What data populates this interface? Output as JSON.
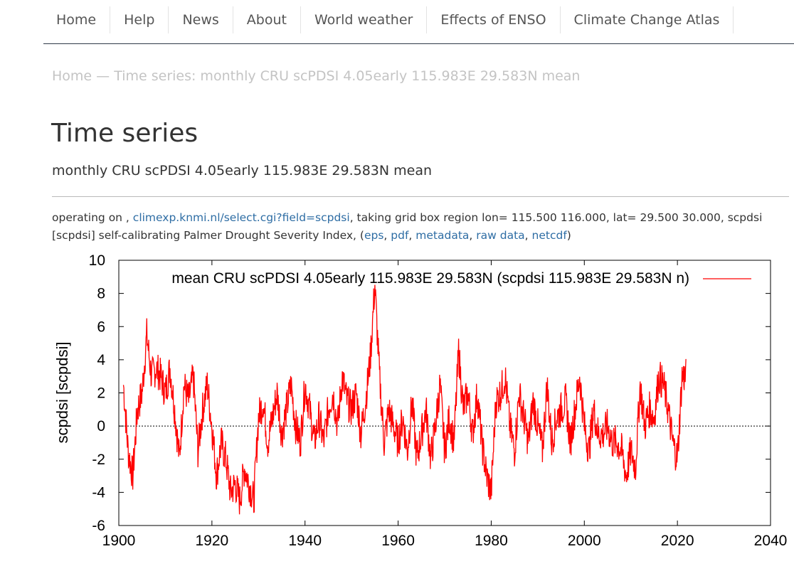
{
  "nav": {
    "items": [
      "Home",
      "Help",
      "News",
      "About",
      "World weather",
      "Effects of ENSO",
      "Climate Change Atlas"
    ]
  },
  "breadcrumb": "Home — Time series: monthly CRU scPDSI 4.05early 115.983E 29.583N mean",
  "title": "Time series",
  "subtitle": "monthly CRU scPDSI 4.05early 115.983E 29.583N mean",
  "info": {
    "prefix": "operating on , ",
    "source_link": "climexp.knmi.nl/select.cgi?field=scpdsi",
    "description": ", taking grid box region lon= 115.500 116.000, lat= 29.500 30.000, scpdsi [scpdsi] self-calibrating Palmer Drought Severity Index, (",
    "links": [
      "eps",
      "pdf",
      "metadata",
      "raw data",
      "netcdf"
    ],
    "suffix": ")"
  },
  "colors": {
    "series": "#ff0000",
    "link": "#2e6da4"
  },
  "chart_data": {
    "type": "line",
    "title": "",
    "xlabel": "",
    "ylabel": "scpdsi [scpdsi]",
    "xlim": [
      1900,
      2040
    ],
    "ylim": [
      -6,
      10
    ],
    "xticks": [
      1900,
      1920,
      1940,
      1960,
      1980,
      2000,
      2020,
      2040
    ],
    "yticks": [
      -6,
      -4,
      -2,
      0,
      2,
      4,
      6,
      8,
      10
    ],
    "legend": "top",
    "zero_line": true,
    "series": [
      {
        "name": "mean CRU scPDSI 4.05early 115.983E 29.583N (scpdsi 115.983E 29.583N n)",
        "x": [
          1901,
          1902,
          1903,
          1904,
          1905,
          1906,
          1907,
          1908,
          1909,
          1910,
          1911,
          1912,
          1913,
          1914,
          1915,
          1916,
          1917,
          1918,
          1919,
          1920,
          1921,
          1922,
          1923,
          1924,
          1925,
          1926,
          1927,
          1928,
          1929,
          1930,
          1931,
          1932,
          1933,
          1934,
          1935,
          1936,
          1937,
          1938,
          1939,
          1940,
          1941,
          1942,
          1943,
          1944,
          1945,
          1946,
          1947,
          1948,
          1949,
          1950,
          1951,
          1952,
          1953,
          1954,
          1955,
          1956,
          1957,
          1958,
          1959,
          1960,
          1961,
          1962,
          1963,
          1964,
          1965,
          1966,
          1967,
          1968,
          1969,
          1970,
          1971,
          1972,
          1973,
          1974,
          1975,
          1976,
          1977,
          1978,
          1979,
          1980,
          1981,
          1982,
          1983,
          1984,
          1985,
          1986,
          1987,
          1988,
          1989,
          1990,
          1991,
          1992,
          1993,
          1994,
          1995,
          1996,
          1997,
          1998,
          1999,
          2000,
          2001,
          2002,
          2003,
          2004,
          2005,
          2006,
          2007,
          2008,
          2009,
          2010,
          2011,
          2012,
          2013,
          2014,
          2015,
          2016,
          2017,
          2018,
          2019,
          2020,
          2021
        ],
        "values": [
          2.5,
          -1.5,
          -3.0,
          1.0,
          2.0,
          5.5,
          3.0,
          3.5,
          3.0,
          2.0,
          3.5,
          1.0,
          -2.0,
          2.5,
          1.5,
          3.0,
          -1.5,
          1.0,
          2.5,
          0.0,
          -3.0,
          -1.0,
          -2.0,
          -4.0,
          -3.5,
          -4.5,
          -2.5,
          -3.5,
          -4.5,
          0.5,
          1.5,
          -1.0,
          0.5,
          2.0,
          -0.5,
          1.0,
          2.5,
          0.0,
          -1.0,
          2.5,
          1.0,
          -1.0,
          0.5,
          -1.0,
          1.0,
          2.0,
          0.0,
          3.0,
          1.5,
          1.0,
          2.0,
          -0.5,
          1.5,
          4.0,
          8.5,
          3.0,
          -1.0,
          1.0,
          0.0,
          -1.0,
          0.5,
          -1.5,
          1.5,
          -2.0,
          -0.5,
          1.0,
          -2.0,
          0.0,
          2.5,
          -1.5,
          0.5,
          -1.0,
          4.5,
          1.0,
          2.0,
          -0.5,
          2.0,
          -1.0,
          -3.0,
          -4.0,
          1.5,
          2.0,
          3.0,
          0.0,
          -1.5,
          2.0,
          0.5,
          -1.0,
          1.5,
          0.0,
          -1.5,
          2.5,
          -1.0,
          0.5,
          1.0,
          1.5,
          -1.0,
          1.0,
          3.0,
          0.0,
          -1.5,
          1.0,
          -0.5,
          -0.5,
          0.0,
          -1.0,
          -1.0,
          -1.5,
          -3.0,
          -1.5,
          -2.5,
          2.5,
          0.0,
          1.0,
          0.5,
          3.0,
          2.5,
          1.0,
          -1.0,
          -2.0,
          3.0
        ]
      }
    ]
  }
}
